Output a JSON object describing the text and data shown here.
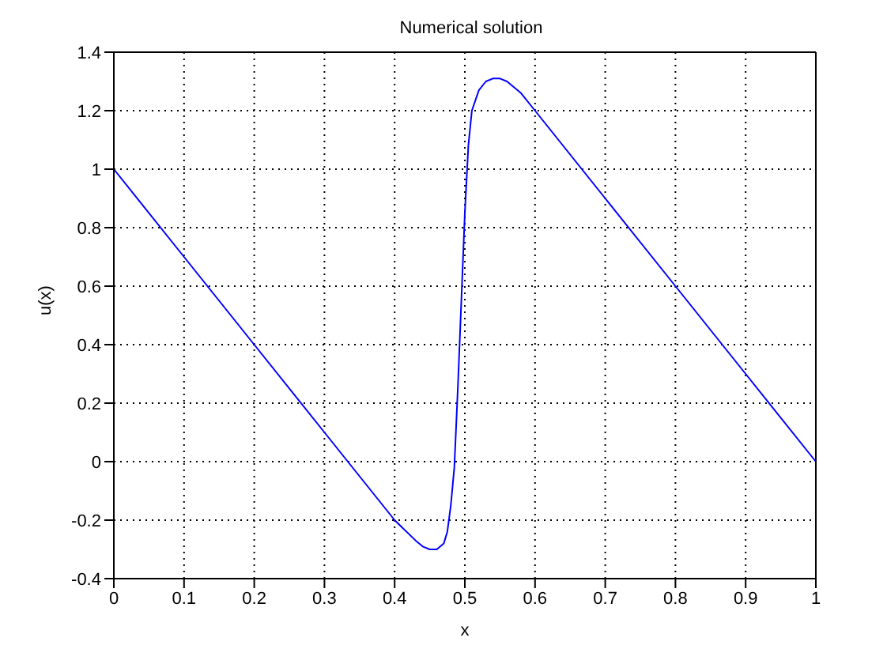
{
  "chart_data": {
    "type": "line",
    "title": "Numerical solution",
    "xlabel": "x",
    "ylabel": "u(x)",
    "x": [
      0,
      0.1,
      0.2,
      0.3,
      0.4,
      0.43,
      0.44,
      0.45,
      0.46,
      0.47,
      0.475,
      0.48,
      0.485,
      0.49,
      0.495,
      0.5,
      0.505,
      0.51,
      0.52,
      0.53,
      0.54,
      0.55,
      0.56,
      0.58,
      0.6,
      0.7,
      0.8,
      0.9,
      1
    ],
    "series": [
      {
        "color": "#0000ff",
        "values": [
          1,
          0.7,
          0.4,
          0.1,
          -0.2,
          -0.27,
          -0.29,
          -0.3,
          -0.3,
          -0.28,
          -0.24,
          -0.15,
          -0.02,
          0.25,
          0.55,
          0.85,
          1.08,
          1.2,
          1.27,
          1.3,
          1.31,
          1.31,
          1.3,
          1.26,
          1.2,
          0.9,
          0.6,
          0.3,
          0
        ]
      }
    ],
    "xlim": [
      0,
      1
    ],
    "xticks": [
      0,
      0.1,
      0.2,
      0.3,
      0.4,
      0.5,
      0.6,
      0.7,
      0.8,
      0.9,
      1
    ],
    "ylim": [
      -0.4,
      1.4
    ],
    "yticks": [
      -0.4,
      -0.2,
      0,
      0.2,
      0.4,
      0.6,
      0.8,
      1,
      1.2,
      1.4
    ],
    "grid": true,
    "line_style": "solid",
    "marker": "none"
  }
}
